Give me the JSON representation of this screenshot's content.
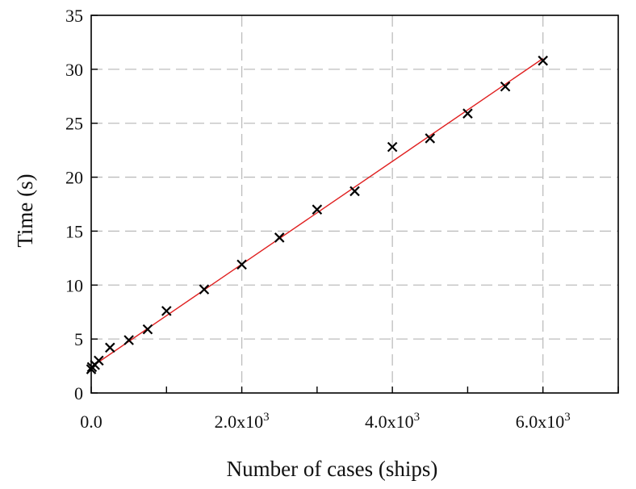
{
  "chart_data": {
    "type": "scatter",
    "xlabel": "Number of cases (ships)",
    "ylabel": "Time (s)",
    "xlim": [
      0,
      7000
    ],
    "ylim": [
      0,
      35
    ],
    "grid": true,
    "x_ticks": [
      {
        "value": 0,
        "label": "0.0"
      },
      {
        "value": 2000,
        "label": "2.0x10",
        "sup": "3"
      },
      {
        "value": 4000,
        "label": "4.0x10",
        "sup": "3"
      },
      {
        "value": 6000,
        "label": "6.0x10",
        "sup": "3"
      }
    ],
    "y_ticks": [
      0,
      5,
      10,
      15,
      20,
      25,
      30,
      35
    ],
    "series": [
      {
        "type": "scatter",
        "marker": "x",
        "color": "#000000",
        "x": [
          0,
          10,
          50,
          100,
          250,
          500,
          750,
          1000,
          1500,
          2000,
          2500,
          3000,
          3500,
          4000,
          4500,
          5000,
          5500,
          6000
        ],
        "y": [
          2.2,
          2.4,
          2.6,
          3.0,
          4.2,
          4.9,
          5.9,
          7.6,
          9.6,
          11.9,
          14.4,
          17.0,
          18.7,
          22.8,
          23.6,
          25.9,
          28.4,
          30.8
        ]
      },
      {
        "type": "line",
        "color": "#e02020",
        "x": [
          0,
          6000
        ],
        "y": [
          2.4,
          31.0
        ]
      }
    ]
  }
}
